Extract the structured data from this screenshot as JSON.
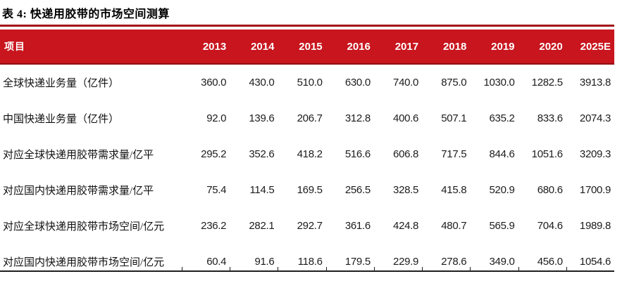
{
  "title": "表 4: 快递用胶带的市场空间测算",
  "colors": {
    "header_bg": "#c8151e",
    "header_text": "#ffffff",
    "header_edge": "#8e1014",
    "top_rule": "#a31016",
    "bottom_rule": "#1f1f1f"
  },
  "table": {
    "header": [
      "项目",
      "2013",
      "2014",
      "2015",
      "2016",
      "2017",
      "2018",
      "2019",
      "2020",
      "2025E"
    ],
    "rows": [
      {
        "label": "全球快递业务量（亿件）",
        "values": [
          "360.0",
          "430.0",
          "510.0",
          "630.0",
          "740.0",
          "875.0",
          "1030.0",
          "1282.5",
          "3913.8"
        ]
      },
      {
        "label": "中国快递业务量（亿件）",
        "values": [
          "92.0",
          "139.6",
          "206.7",
          "312.8",
          "400.6",
          "507.1",
          "635.2",
          "833.6",
          "2074.3"
        ]
      },
      {
        "label": "对应全球快递用胶带需求量/亿平",
        "values": [
          "295.2",
          "352.6",
          "418.2",
          "516.6",
          "606.8",
          "717.5",
          "844.6",
          "1051.6",
          "3209.3"
        ]
      },
      {
        "label": "对应国内快递用胶带需求量/亿平",
        "values": [
          "75.4",
          "114.5",
          "169.5",
          "256.5",
          "328.5",
          "415.8",
          "520.9",
          "680.6",
          "1700.9"
        ]
      },
      {
        "label": "对应全球快递用胶带市场空间/亿元",
        "values": [
          "236.2",
          "282.1",
          "292.7",
          "361.6",
          "424.8",
          "480.7",
          "565.9",
          "704.6",
          "1989.8"
        ]
      },
      {
        "label": "对应国内快递用胶带市场空间/亿元",
        "values": [
          "60.4",
          "91.6",
          "118.6",
          "179.5",
          "229.9",
          "278.6",
          "349.0",
          "456.0",
          "1054.6"
        ]
      }
    ]
  }
}
